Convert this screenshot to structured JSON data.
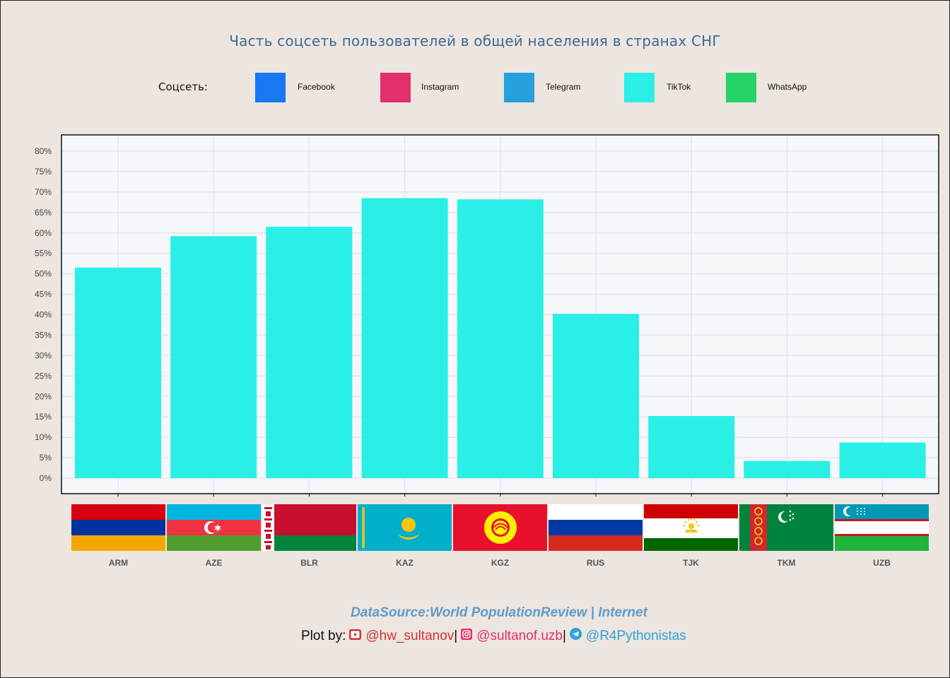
{
  "title": "Часть соцсеть пользователей  в общей  населения  в странах СНГ",
  "legend": {
    "title": "Соцсеть:",
    "items": [
      {
        "label": "Facebook",
        "color": "#1877f2"
      },
      {
        "label": "Instagram",
        "color": "#e1306c"
      },
      {
        "label": "Telegram",
        "color": "#27a0de"
      },
      {
        "label": "TikTok",
        "color": "#2aefe6"
      },
      {
        "label": "WhatsApp",
        "color": "#25d366"
      }
    ]
  },
  "chart_data": {
    "type": "bar",
    "categories": [
      "ARM",
      "AZE",
      "BLR",
      "KAZ",
      "KGZ",
      "RUS",
      "TJK",
      "TKM",
      "UZB"
    ],
    "series": [
      {
        "name": "TikTok",
        "values": [
          51.5,
          59.2,
          61.5,
          68.5,
          68.2,
          40.2,
          15.2,
          4.2,
          8.7
        ]
      }
    ],
    "yticks": [
      "0%",
      "5%",
      "10%",
      "15%",
      "20%",
      "25%",
      "30%",
      "35%",
      "40%",
      "45%",
      "50%",
      "55%",
      "60%",
      "65%",
      "70%",
      "75%",
      "80%"
    ],
    "ylim": [
      0,
      82
    ],
    "grid": true,
    "legend_position": "top"
  },
  "footer": {
    "datasource": "DataSource:World PopulationReview | Internet",
    "plot_by": "Plot by:",
    "youtube": "@hw_sultanov",
    "instagram": "@sultanof.uzb",
    "telegram": "@R4Pythonistas",
    "sep": "|"
  },
  "icons": [
    "youtube-icon",
    "instagram-icon",
    "telegram-icon"
  ]
}
